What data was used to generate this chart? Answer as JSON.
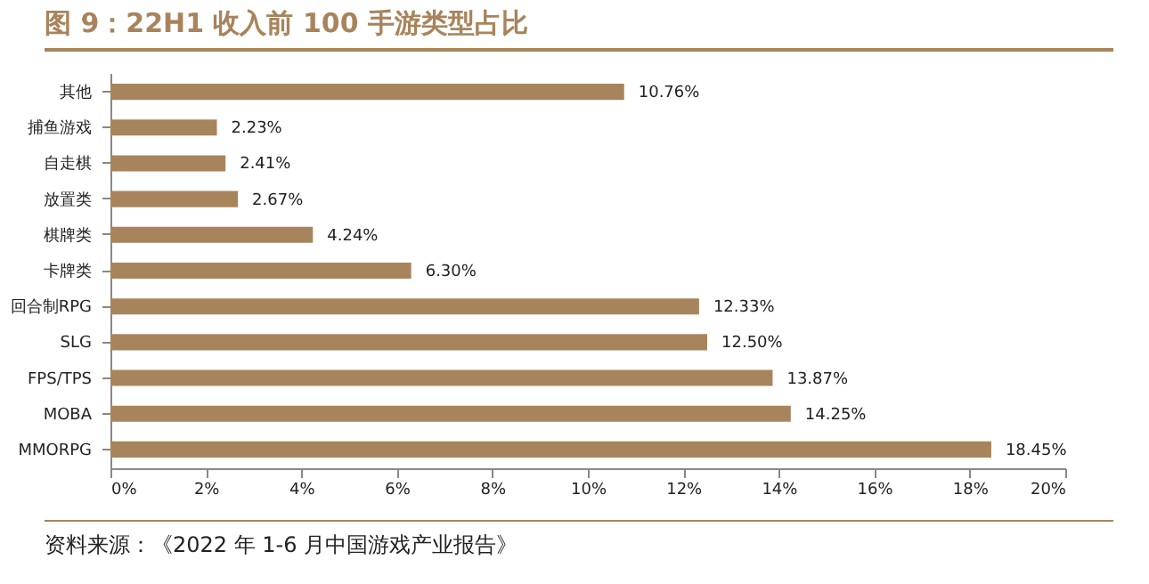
{
  "chart_data": {
    "type": "bar",
    "orientation": "horizontal",
    "title": "图 9：22H1 收入前 100 手游类型占比",
    "categories": [
      "其他",
      "捕鱼游戏",
      "自走棋",
      "放置类",
      "棋牌类",
      "卡牌类",
      "回合制RPG",
      "SLG",
      "FPS/TPS",
      "MOBA",
      "MMORPG"
    ],
    "values": [
      10.76,
      2.23,
      2.41,
      2.67,
      4.24,
      6.3,
      12.33,
      12.5,
      13.87,
      14.25,
      18.45
    ],
    "value_labels": [
      "10.76%",
      "2.23%",
      "2.41%",
      "2.67%",
      "4.24%",
      "6.30%",
      "12.33%",
      "12.50%",
      "13.87%",
      "14.25%",
      "18.45%"
    ],
    "color": "#a8845c",
    "xlim": [
      0,
      20
    ],
    "xticks": [
      {
        "value": 0,
        "label": "0%"
      },
      {
        "value": 2,
        "label": "2%"
      },
      {
        "value": 4,
        "label": "4%"
      },
      {
        "value": 6,
        "label": "6%"
      },
      {
        "value": 8,
        "label": "8%"
      },
      {
        "value": 10,
        "label": "10%"
      },
      {
        "value": 12,
        "label": "12%"
      },
      {
        "value": 14,
        "label": "14%"
      },
      {
        "value": 16,
        "label": "16%"
      },
      {
        "value": 18,
        "label": "18%"
      },
      {
        "value": 20,
        "label": "20%"
      }
    ],
    "grid": false,
    "annotations": [
      "资料来源：《2022 年 1-6 月中国游戏产业报告》"
    ]
  }
}
